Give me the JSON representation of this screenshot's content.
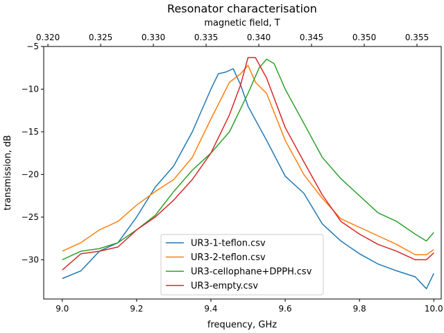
{
  "chart_data": {
    "type": "line",
    "title": "Resonator characterisation",
    "xlabel": "frequency, GHz",
    "ylabel": "transmission, dB",
    "secondary_xlabel": "magnetic field, T",
    "xlim": [
      8.95,
      10.02
    ],
    "ylim": [
      -34.6,
      -5.0
    ],
    "xticks": [
      "9.0",
      "9.2",
      "9.4",
      "9.6",
      "9.8",
      "10.0"
    ],
    "xtick_values": [
      9.0,
      9.2,
      9.4,
      9.6,
      9.8,
      10.0
    ],
    "yticks": [
      "−30",
      "−25",
      "−20",
      "−15",
      "−10",
      "−5"
    ],
    "ytick_values": [
      -30,
      -25,
      -20,
      -15,
      -10,
      -5
    ],
    "secondary_xticks": [
      "0.320",
      "0.325",
      "0.330",
      "0.335",
      "0.340",
      "0.345",
      "0.350",
      "0.355"
    ],
    "secondary_xtick_values": [
      0.32,
      0.325,
      0.33,
      0.335,
      0.34,
      0.345,
      0.35,
      0.355
    ],
    "secondary_xlim": [
      0.3196,
      0.3573
    ],
    "legend_position": "lower center",
    "grid": false,
    "series": [
      {
        "name": "UR3-1-teflon.csv",
        "color": "#1f77b4",
        "x": [
          9.0,
          9.05,
          9.1,
          9.15,
          9.2,
          9.25,
          9.3,
          9.35,
          9.4,
          9.42,
          9.44,
          9.46,
          9.48,
          9.5,
          9.52,
          9.55,
          9.6,
          9.65,
          9.7,
          9.75,
          9.8,
          9.85,
          9.9,
          9.95,
          9.98,
          10.0
        ],
        "y": [
          -32.2,
          -31.3,
          -29.0,
          -28.0,
          -25.0,
          -21.5,
          -19.0,
          -15.0,
          -10.0,
          -8.2,
          -8.0,
          -7.6,
          -9.5,
          -12.0,
          -13.6,
          -16.0,
          -20.2,
          -22.2,
          -25.8,
          -27.8,
          -29.3,
          -30.5,
          -31.3,
          -32.0,
          -33.4,
          -31.6
        ]
      },
      {
        "name": "UR3-2-teflon.csv",
        "color": "#ff7f0e",
        "x": [
          9.0,
          9.05,
          9.1,
          9.15,
          9.2,
          9.25,
          9.3,
          9.35,
          9.4,
          9.45,
          9.48,
          9.5,
          9.52,
          9.55,
          9.6,
          9.65,
          9.7,
          9.75,
          9.8,
          9.85,
          9.9,
          9.95,
          9.98,
          10.0
        ],
        "y": [
          -29.0,
          -28.0,
          -26.5,
          -25.5,
          -23.6,
          -22.0,
          -20.6,
          -18.0,
          -13.5,
          -9.2,
          -8.2,
          -7.2,
          -9.2,
          -10.5,
          -16.0,
          -20.0,
          -22.8,
          -25.2,
          -26.2,
          -27.2,
          -28.2,
          -29.4,
          -29.4,
          -28.8
        ]
      },
      {
        "name": "UR3-cellophane+DPPH.csv",
        "color": "#2ca02c",
        "x": [
          9.0,
          9.05,
          9.1,
          9.15,
          9.2,
          9.25,
          9.3,
          9.35,
          9.4,
          9.45,
          9.5,
          9.53,
          9.55,
          9.57,
          9.6,
          9.65,
          9.7,
          9.75,
          9.8,
          9.85,
          9.9,
          9.95,
          9.98,
          10.0
        ],
        "y": [
          -30.0,
          -29.0,
          -28.7,
          -28.0,
          -26.5,
          -24.8,
          -22.0,
          -19.5,
          -17.5,
          -15.0,
          -10.5,
          -7.5,
          -6.5,
          -7.0,
          -10.0,
          -14.0,
          -18.0,
          -20.5,
          -22.5,
          -24.5,
          -25.5,
          -27.0,
          -27.8,
          -26.8
        ]
      },
      {
        "name": "UR3-empty.csv",
        "color": "#d62728",
        "x": [
          9.0,
          9.05,
          9.1,
          9.15,
          9.2,
          9.25,
          9.3,
          9.35,
          9.4,
          9.45,
          9.48,
          9.5,
          9.52,
          9.55,
          9.6,
          9.65,
          9.7,
          9.75,
          9.8,
          9.85,
          9.9,
          9.95,
          9.98,
          10.0
        ],
        "y": [
          -31.2,
          -29.3,
          -29.0,
          -28.5,
          -26.5,
          -25.0,
          -23.0,
          -20.6,
          -17.5,
          -13.0,
          -9.5,
          -6.3,
          -6.3,
          -8.7,
          -14.5,
          -18.5,
          -22.4,
          -25.5,
          -27.0,
          -28.2,
          -29.0,
          -30.0,
          -30.0,
          -29.2
        ]
      }
    ]
  }
}
